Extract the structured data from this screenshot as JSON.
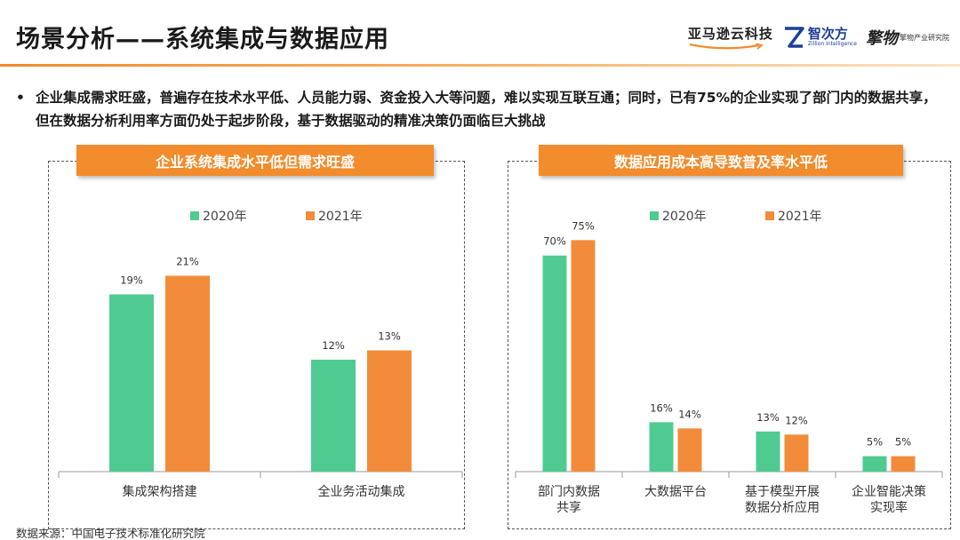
{
  "header": {
    "title": "场景分析——系统集成与数据应用",
    "logos": {
      "amazon": "亚马逊云科技",
      "zhici_main": "智次方",
      "zhici_sub": "Zillion Intelligence",
      "qiao_mark": "擎物",
      "qiao_text": "擎物产业研究院"
    }
  },
  "bullet": {
    "symbol": "•",
    "text": "企业集成需求旺盛，普遍存在技术水平低、人员能力弱、资金投入大等问题，难以实现互联互通；同时，已有75%的企业实现了部门内的数据共享，但在数据分析利用率方面仍处于起步阶段，基于数据驱动的精准决策仍面临巨大挑战"
  },
  "source": "数据来源：中国电子技术标准化研究院",
  "colors": {
    "series2020": "#4fcb91",
    "series2021": "#f28c3a",
    "accent": "#f28c2c"
  },
  "chart_data": [
    {
      "type": "bar",
      "title": "企业系统集成水平低但需求旺盛",
      "categories": [
        "集成架构搭建",
        "全业务活动集成"
      ],
      "series": [
        {
          "name": "2020年",
          "values": [
            19,
            12
          ],
          "labels": [
            "19%",
            "12%"
          ]
        },
        {
          "name": "2021年",
          "values": [
            21,
            13
          ],
          "labels": [
            "21%",
            "13%"
          ]
        }
      ],
      "ylim": [
        0,
        30
      ],
      "unit": "%",
      "legend": "top-center",
      "grid": false
    },
    {
      "type": "bar",
      "title": "数据应用成本高导致普及率水平低",
      "categories": [
        "部门内数据\n共享",
        "大数据平台",
        "基于模型开展\n数据分析应用",
        "企业智能决策\n实现率"
      ],
      "series": [
        {
          "name": "2020年",
          "values": [
            70,
            16,
            13,
            5
          ],
          "labels": [
            "70%",
            "16%",
            "13%",
            "5%"
          ]
        },
        {
          "name": "2021年",
          "values": [
            75,
            14,
            12,
            5
          ],
          "labels": [
            "75%",
            "14%",
            "12%",
            "5%"
          ]
        }
      ],
      "ylim": [
        0,
        82
      ],
      "unit": "%",
      "legend": "top-center",
      "grid": false
    }
  ]
}
